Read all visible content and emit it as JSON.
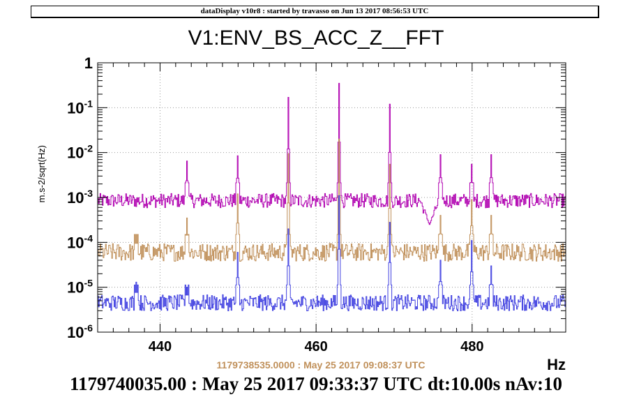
{
  "header": {
    "title": "dataDisplay v10r8 : started by travasso on Jun 13 2017 08:56:53 UTC"
  },
  "footer": {
    "reference_time": "1179738535.0000 : May 25 2017 09:08:37 UTC",
    "current_time": "1179740035.00 : May 25 2017 09:33:37 UTC dt:10.00s nAv:10"
  },
  "colors": {
    "magenta": "#b000b0",
    "tan": "#c0905a",
    "blue": "#4040e0"
  },
  "chart_data": {
    "type": "line",
    "title": "V1:ENV_BS_ACC_Z__FFT",
    "xlabel": "Hz",
    "ylabel": "m.s-2/sqrt(Hz)",
    "xlim": [
      432,
      492
    ],
    "ylim": [
      1e-06,
      1
    ],
    "yscale": "log",
    "grid": true,
    "x_ticks": [
      {
        "value": 440,
        "label": "440"
      },
      {
        "value": 460,
        "label": "460"
      },
      {
        "value": 480,
        "label": "480"
      }
    ],
    "y_ticks": [
      {
        "value": 1,
        "base": "1",
        "exp": ""
      },
      {
        "value": 0.1,
        "base": "10",
        "exp": "-1"
      },
      {
        "value": 0.01,
        "base": "10",
        "exp": "-2"
      },
      {
        "value": 0.001,
        "base": "10",
        "exp": "-3"
      },
      {
        "value": 0.0001,
        "base": "10",
        "exp": "-4"
      },
      {
        "value": 1e-05,
        "base": "10",
        "exp": "-5"
      },
      {
        "value": 1e-06,
        "base": "10",
        "exp": "-6"
      }
    ],
    "x_step": 0.1,
    "series": [
      {
        "color": "#b000b0",
        "base": 0.00085,
        "noise": 0.16,
        "dips": [
          {
            "x": 474.5,
            "to": 0.00025,
            "width": 1.2
          }
        ],
        "peaks": [
          {
            "x": 443.4,
            "value": 0.0065
          },
          {
            "x": 449.9,
            "value": 0.0085
          },
          {
            "x": 456.4,
            "value": 0.17
          },
          {
            "x": 462.9,
            "value": 0.35
          },
          {
            "x": 469.4,
            "value": 0.12
          },
          {
            "x": 475.9,
            "value": 0.009
          },
          {
            "x": 479.9,
            "value": 0.0055
          },
          {
            "x": 482.4,
            "value": 0.009
          }
        ]
      },
      {
        "color": "#c0905a",
        "base": 6e-05,
        "noise": 0.2,
        "dips": [],
        "peaks": [
          {
            "x": 436.9,
            "value": 0.00015
          },
          {
            "x": 443.4,
            "value": 0.00035
          },
          {
            "x": 449.9,
            "value": 0.0012
          },
          {
            "x": 456.4,
            "value": 0.0095
          },
          {
            "x": 462.9,
            "value": 0.02
          },
          {
            "x": 469.4,
            "value": 0.0055
          },
          {
            "x": 475.9,
            "value": 0.0004
          },
          {
            "x": 479.9,
            "value": 0.0009
          },
          {
            "x": 482.4,
            "value": 0.0004
          }
        ]
      },
      {
        "color": "#4040e0",
        "base": 4.5e-06,
        "noise": 0.18,
        "dips": [],
        "peaks": [
          {
            "x": 436.9,
            "value": 1.3e-05
          },
          {
            "x": 443.4,
            "value": 1e-05
          },
          {
            "x": 449.9,
            "value": 6e-05
          },
          {
            "x": 456.4,
            "value": 0.0002
          },
          {
            "x": 462.9,
            "value": 0.0011
          },
          {
            "x": 469.4,
            "value": 0.00028
          },
          {
            "x": 475.9,
            "value": 4e-05
          },
          {
            "x": 479.9,
            "value": 0.00011
          },
          {
            "x": 482.4,
            "value": 3e-05
          }
        ]
      }
    ]
  }
}
